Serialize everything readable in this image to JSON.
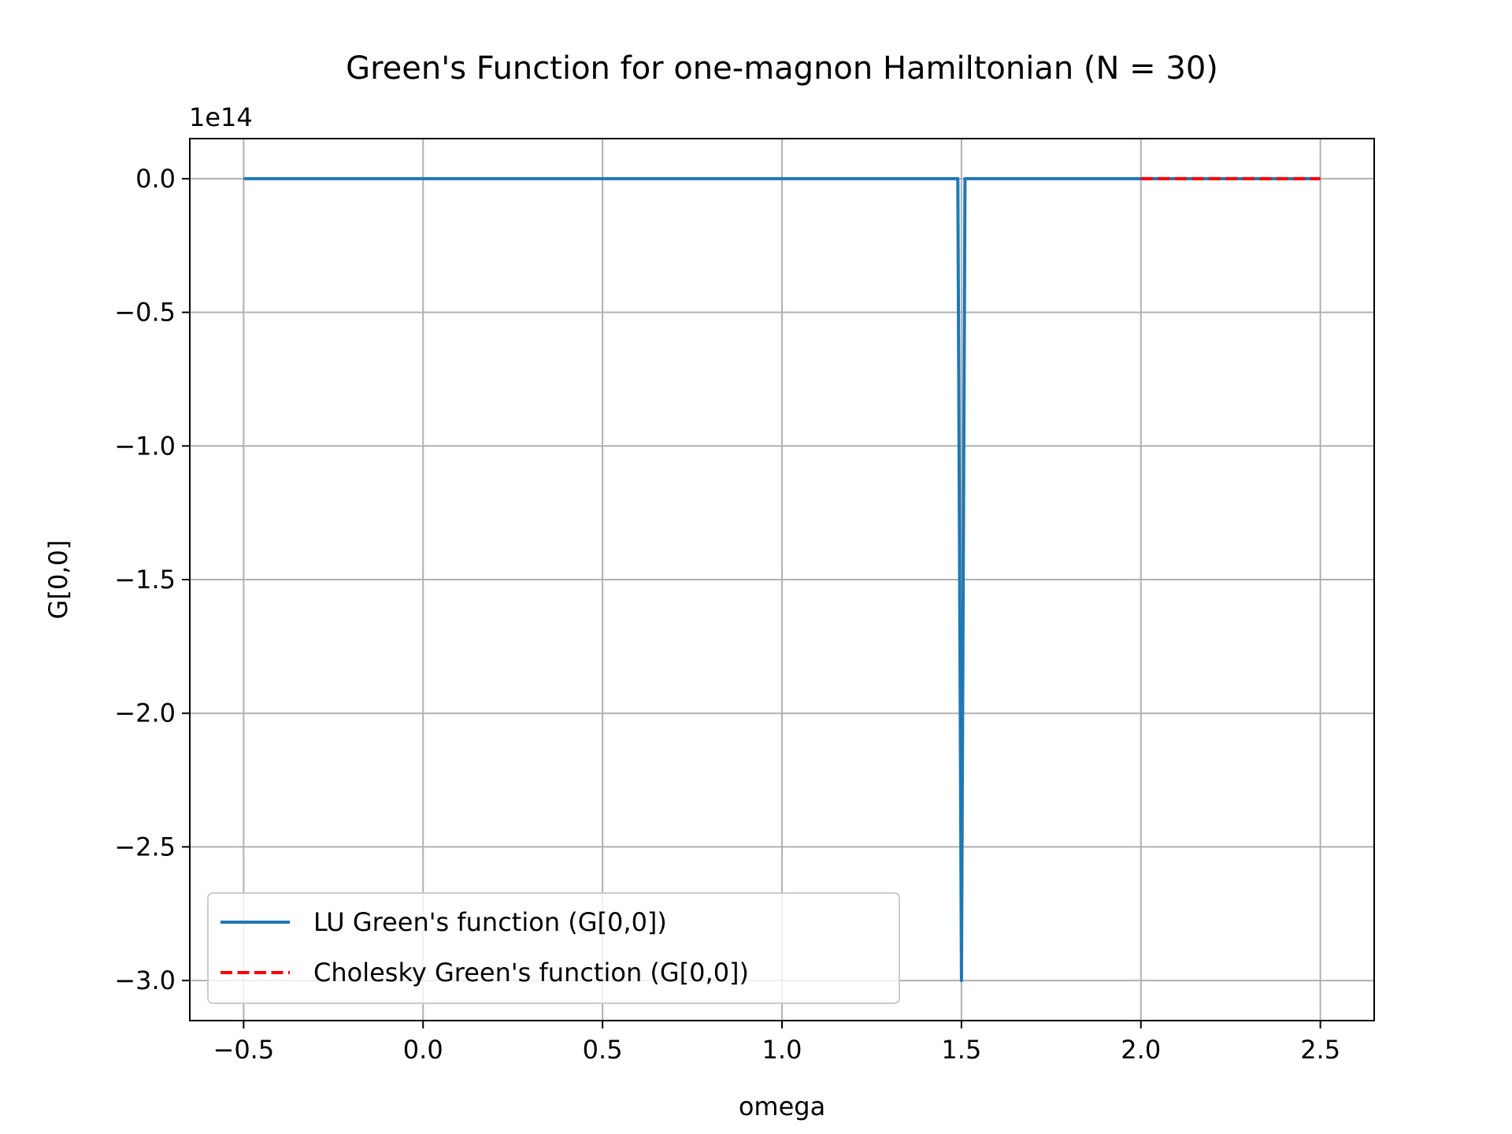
{
  "chart_data": {
    "type": "line",
    "title": "Green's Function for one-magnon Hamiltonian (N = 30)",
    "xlabel": "omega",
    "ylabel": "G[0,0]",
    "y_offset_label": "1e14",
    "xlim": [
      -0.65,
      2.65
    ],
    "ylim": [
      -3.15,
      0.15
    ],
    "y_scale": 100000000000000.0,
    "grid": true,
    "legend_position": "lower left",
    "x_ticks": [
      -0.5,
      0.0,
      0.5,
      1.0,
      1.5,
      2.0,
      2.5
    ],
    "x_tick_labels": [
      "−0.5",
      "0.0",
      "0.5",
      "1.0",
      "1.5",
      "2.0",
      "2.5"
    ],
    "y_ticks": [
      0.0,
      -0.5,
      -1.0,
      -1.5,
      -2.0,
      -2.5,
      -3.0
    ],
    "y_tick_labels": [
      "0.0",
      "−0.5",
      "−1.0",
      "−1.5",
      "−2.0",
      "−2.5",
      "−3.0"
    ],
    "series": [
      {
        "name": "LU Green's function (G[0,0])",
        "color": "#1f77b4",
        "style": "solid",
        "x": [
          -0.5,
          1.49,
          1.5,
          1.51,
          2.5
        ],
        "y": [
          0.0,
          0.0,
          -3.0,
          0.0,
          0.0
        ]
      },
      {
        "name": "Cholesky Green's function (G[0,0])",
        "color": "#ff0000",
        "style": "dashed",
        "x": [
          2.0,
          2.5
        ],
        "y": [
          0.0,
          0.0
        ]
      }
    ]
  }
}
